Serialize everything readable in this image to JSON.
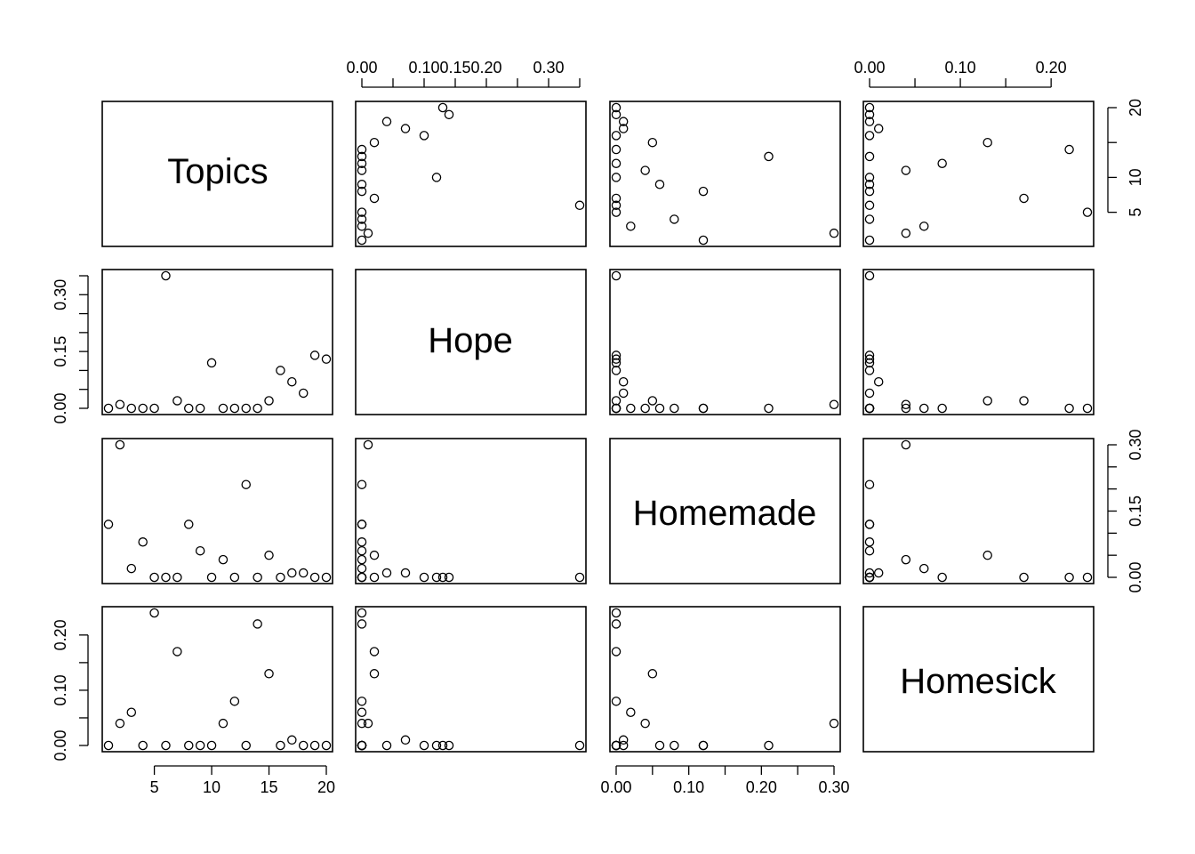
{
  "chart_data": {
    "type": "scatter",
    "subtype": "pairs-matrix",
    "variables": [
      "Topics",
      "Hope",
      "Homemade",
      "Homesick"
    ],
    "ranges": {
      "Topics": [
        1,
        20
      ],
      "Hope": [
        0,
        0.35
      ],
      "Homemade": [
        0,
        0.3
      ],
      "Homesick": [
        0,
        0.24
      ]
    },
    "axes": {
      "Topics": {
        "ticks": [
          5,
          10,
          15,
          20
        ],
        "labels": [
          "5",
          "10",
          "15",
          "20"
        ]
      },
      "Hope": {
        "ticks": [
          0,
          0.05,
          0.1,
          0.15,
          0.2,
          0.25,
          0.3,
          0.35
        ],
        "labels": [
          "0.00",
          "",
          "0.10",
          "0.15",
          "0.20",
          "",
          "0.30",
          ""
        ],
        "left_labels": [
          "0.00",
          "",
          "",
          "0.15",
          "",
          "",
          "0.30",
          ""
        ]
      },
      "Homemade": {
        "ticks": [
          0,
          0.05,
          0.1,
          0.15,
          0.2,
          0.25,
          0.3
        ],
        "labels": [
          "0.00",
          "",
          "0.10",
          "",
          "0.20",
          "",
          "0.30"
        ],
        "right_labels": [
          "0.00",
          "",
          "",
          "0.15",
          "",
          "",
          "0.30"
        ]
      },
      "Homesick": {
        "ticks": [
          0,
          0.05,
          0.1,
          0.15,
          0.2
        ],
        "labels": [
          "0.00",
          "",
          "0.10",
          "",
          "0.20"
        ],
        "right_labels": [
          "",
          "5",
          "10",
          "",
          "20"
        ]
      }
    },
    "observations": [
      {
        "Topics": 1,
        "Hope": 0.0,
        "Homemade": 0.12,
        "Homesick": 0.0
      },
      {
        "Topics": 2,
        "Hope": 0.01,
        "Homemade": 0.3,
        "Homesick": 0.04
      },
      {
        "Topics": 3,
        "Hope": 0.0,
        "Homemade": 0.02,
        "Homesick": 0.06
      },
      {
        "Topics": 4,
        "Hope": 0.0,
        "Homemade": 0.08,
        "Homesick": 0.0
      },
      {
        "Topics": 5,
        "Hope": 0.0,
        "Homemade": 0.0,
        "Homesick": 0.24
      },
      {
        "Topics": 6,
        "Hope": 0.35,
        "Homemade": 0.0,
        "Homesick": 0.0
      },
      {
        "Topics": 7,
        "Hope": 0.02,
        "Homemade": 0.0,
        "Homesick": 0.17
      },
      {
        "Topics": 8,
        "Hope": 0.0,
        "Homemade": 0.12,
        "Homesick": 0.0
      },
      {
        "Topics": 9,
        "Hope": 0.0,
        "Homemade": 0.06,
        "Homesick": 0.0
      },
      {
        "Topics": 10,
        "Hope": 0.12,
        "Homemade": 0.0,
        "Homesick": 0.0
      },
      {
        "Topics": 11,
        "Hope": 0.0,
        "Homemade": 0.04,
        "Homesick": 0.04
      },
      {
        "Topics": 12,
        "Hope": 0.0,
        "Homemade": 0.0,
        "Homesick": 0.08
      },
      {
        "Topics": 13,
        "Hope": 0.0,
        "Homemade": 0.21,
        "Homesick": 0.0
      },
      {
        "Topics": 14,
        "Hope": 0.0,
        "Homemade": 0.0,
        "Homesick": 0.22
      },
      {
        "Topics": 15,
        "Hope": 0.02,
        "Homemade": 0.05,
        "Homesick": 0.13
      },
      {
        "Topics": 16,
        "Hope": 0.1,
        "Homemade": 0.0,
        "Homesick": 0.0
      },
      {
        "Topics": 17,
        "Hope": 0.07,
        "Homemade": 0.01,
        "Homesick": 0.01
      },
      {
        "Topics": 18,
        "Hope": 0.04,
        "Homemade": 0.01,
        "Homesick": 0.0
      },
      {
        "Topics": 19,
        "Hope": 0.14,
        "Homemade": 0.0,
        "Homesick": 0.0
      },
      {
        "Topics": 20,
        "Hope": 0.13,
        "Homemade": 0.0,
        "Homesick": 0.0
      }
    ],
    "grid": false,
    "legend": "none"
  }
}
